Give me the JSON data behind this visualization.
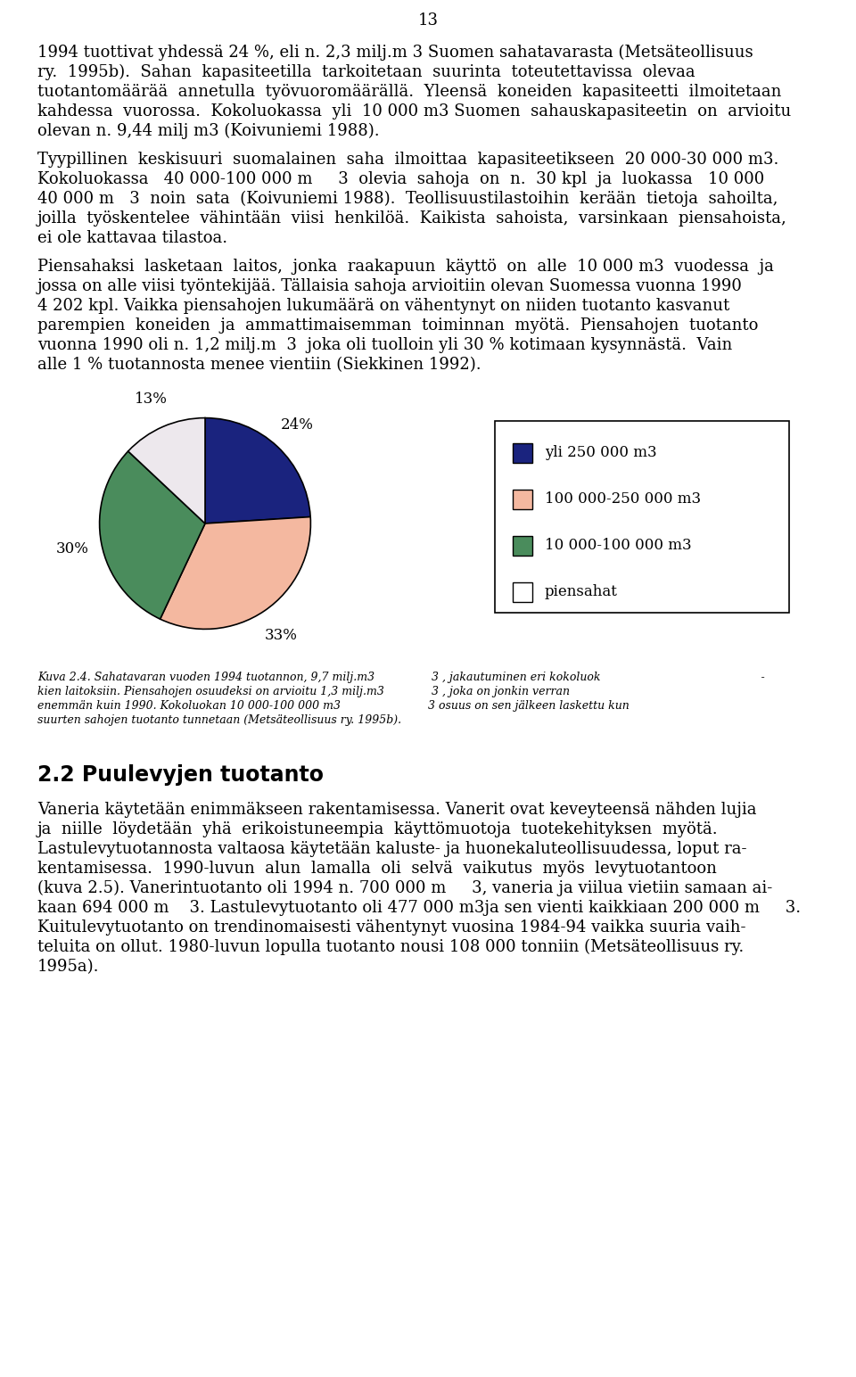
{
  "page_number": "13",
  "text_block1_lines": [
    [
      "1994 tuottivat yhdessä 24 %, eli n. 2,3 milj.m",
      " 3 ",
      "Suomen sahatavarasta (Metsäteollisuus"
    ],
    [
      "ry.  1995b).  Sahan  kapasiteetilla  tarkoitetaan  suurinta  toteutettavissa  olevaa"
    ],
    [
      "tuotantomäärää  annetulla  työvuoromäärällä.  Yleensä  koneiden  kapasiteetti  ilmoitetaan"
    ],
    [
      "kahdessa  vuorossa.  Kokoluokassa  yli  10 000 m",
      "3 ",
      "Suomen  sahauskapasiteetin  on  arvioitu"
    ],
    [
      "olevan n. 9,44 milj m",
      "3",
      " (Koivuniemi 1988)."
    ]
  ],
  "text_block2_lines": [
    [
      "Tyypillinen  keskisuuri  suomalainen  saha  ilmoittaa  kapasiteetikseen  20 000-30 000 m",
      "3",
      "."
    ],
    [
      "Kokoluokassa   40 000-100 000 m     ",
      "3",
      "  olevia  sahoja  on  n.  30 kpl  ja  luokassa   10 000"
    ],
    [
      "40 000 m   ",
      "3",
      "  noin  sata  (Koivuniemi 1988).  Teollisuustilastoihin  kerään  tietoja  sahoilta,"
    ],
    [
      "joilla  työskentelee  vähintään  viisi  henkilöä.  Kaikista  sahoista,  varsinkaan  piensahoista,"
    ],
    [
      "ei ole kattavaa tilastoa."
    ]
  ],
  "text_block3_lines": [
    [
      "Piensahaksi  lasketaan  laitos,  jonka  raakapuun  käyttö  on  alle  10 000 m",
      "3",
      "  vuodessa  ja"
    ],
    [
      "jossa on alle viisi työntekijää. Tällaisia sahoja arvioitiin olevan Suomessa vuonna 1990"
    ],
    [
      "4 202 kpl. Vaikka piensahojen lukumäärä on vähentynyt on niiden tuotanto kasvanut"
    ],
    [
      "parempien  koneiden  ja  ammattimaisemman  toiminnan  myötä.  Piensahojen  tuotanto"
    ],
    [
      "vuonna 1990 oli n. 1,2 milj.m  ",
      "3",
      "  joka oli tuolloin yli 30 % kotimaan kysynnästä.  Vain"
    ],
    [
      "alle 1 % tuotannosta menee vientiin (Siekkinen 1992)."
    ]
  ],
  "pie_slices": [
    24,
    33,
    30,
    13
  ],
  "pie_colors": [
    "#1a237e",
    "#f4b8a0",
    "#4a8c5c",
    "#ede8ed"
  ],
  "pie_pct_labels": [
    "24%",
    "33%",
    "30%",
    "13%"
  ],
  "legend_labels": [
    "yli 250 000 m3",
    "100 000-250 000 m3",
    "10 000-100 000 m3",
    "piensahat"
  ],
  "legend_colors": [
    "#1a237e",
    "#f4b8a0",
    "#4a8c5c",
    "#ffffff"
  ],
  "caption_left": [
    [
      "Kuva 2.4. Sahatavaran vuoden 1994 tuotannon, 9,7 milj.m",
      "3"
    ],
    [
      "kien laitoksiin. Piensahojen osuudeksi on arvioitu 1,3 milj.m",
      "3"
    ],
    [
      "enemmän kuin 1990. Kokoluokan 10 000-100 000 m",
      "3"
    ],
    [
      "suurten sahojen tuotanto tunnetaan (Metsäteollisuus ry. 1995b)."
    ]
  ],
  "caption_right": [
    [
      " 3",
      " , jakautuminen eri kokoluok",
      "                                             -"
    ],
    [
      " 3",
      " , joka on jonkin verran"
    ],
    [
      "3",
      " osuus on sen jälkeen laskettu kun"
    ]
  ],
  "section_title": "2.2 Puulevyjen tuotanto",
  "section_lines": [
    [
      "Vaneria käytetään enimmäkseen rakentamisessa. Vanerit ovat keveyteensä nähden lujia"
    ],
    [
      "ja  niille  löydetään  yhä  erikoistuneempia  käyttömuotoja  tuotekehityksen  myötä."
    ],
    [
      "Lastulevytuotannosta valtaosa käytetään kaluste- ja huonekaluteollisuudessa, loput ra-"
    ],
    [
      "kentamisessa.  1990-luvun  alun  lamalla  oli  selvä  vaikutus  myös  levytuotantoon"
    ],
    [
      "(kuva 2.5). Vanerintuotanto oli 1994 n. 700 000 m     ",
      "3",
      ", vaneria ja viilua vietiin samaan ai-"
    ],
    [
      "kaan 694 000 m    ",
      "3",
      ". Lastulevytuotanto oli 477 000 m",
      "3",
      "ja sen vienti kaikkiaan 200 000 m     ",
      "3",
      "."
    ],
    [
      "Kuitulevytuotanto on trendinomaisesti vähentynyt vuosina 1984-94 vaikka suuria vaih-"
    ],
    [
      "teluita on ollut. 1980-luvun lopulla tuotanto nousi 108 000 tonniin (Metsäteollisuus ry."
    ],
    [
      "1995a)."
    ]
  ]
}
